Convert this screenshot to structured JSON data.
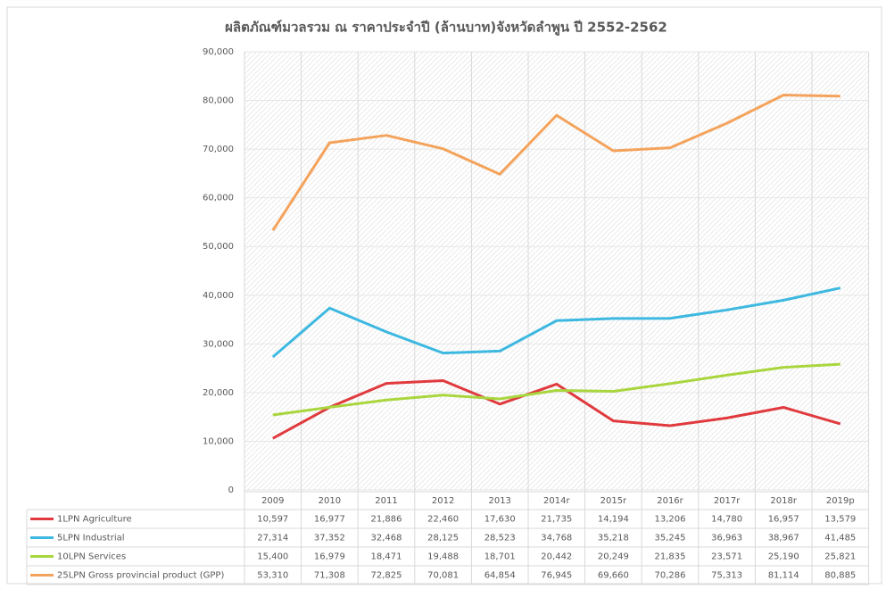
{
  "chart_data": {
    "type": "line",
    "title": "ผลิตภัณฑ์มวลรวม ณ ราคาประจำปี (ล้านบาท)จังหวัดลำพูน ปี 2552-2562",
    "categories": [
      "2009",
      "2010",
      "2011",
      "2012",
      "2013",
      "2014r",
      "2015r",
      "2016r",
      "2017r",
      "2018r",
      "2019p"
    ],
    "series": [
      {
        "name": "1LPN Agriculture",
        "color": "#e03a3e",
        "values": [
          10597,
          16977,
          21886,
          22460,
          17630,
          21735,
          14194,
          13206,
          14780,
          16957,
          13579
        ],
        "value_labels": [
          "10,597",
          "16,977",
          "21,886",
          "22,460",
          "17,630",
          "21,735",
          "14,194",
          "13,206",
          "14,780",
          "16,957",
          "13,579"
        ]
      },
      {
        "name": "5LPN Industrial",
        "color": "#3db8e0",
        "values": [
          27314,
          37352,
          32468,
          28125,
          28523,
          34768,
          35218,
          35245,
          36963,
          38967,
          41485
        ],
        "value_labels": [
          "27,314",
          "37,352",
          "32,468",
          "28,125",
          "28,523",
          "34,768",
          "35,218",
          "35,245",
          "36,963",
          "38,967",
          "41,485"
        ]
      },
      {
        "name": "10LPN Services",
        "color": "#a9d63f",
        "values": [
          15400,
          16979,
          18471,
          19488,
          18701,
          20442,
          20249,
          21835,
          23571,
          25190,
          25821
        ],
        "value_labels": [
          "15,400",
          "16,979",
          "18,471",
          "19,488",
          "18,701",
          "20,442",
          "20,249",
          "21,835",
          "23,571",
          "25,190",
          "25,821"
        ]
      },
      {
        "name": "25LPN Gross provincial product (GPP)",
        "color": "#f4a35c",
        "values": [
          53310,
          71308,
          72825,
          70081,
          64854,
          76945,
          69660,
          70286,
          75313,
          81114,
          80885
        ],
        "value_labels": [
          "53,310",
          "71,308",
          "72,825",
          "70,081",
          "64,854",
          "76,945",
          "69,660",
          "70,286",
          "75,313",
          "81,114",
          "80,885"
        ]
      }
    ],
    "ylim": [
      0,
      90000
    ],
    "yticks": [
      0,
      {
        "value": 10000,
        "label": "10,000"
      },
      {
        "value": 20000,
        "label": "20,000"
      },
      {
        "value": 30000,
        "label": "30,000"
      },
      {
        "value": 40000,
        "label": "40,000"
      },
      {
        "value": 50000,
        "label": "50,000"
      },
      {
        "value": 60000,
        "label": "60,000"
      },
      {
        "value": 70000,
        "label": "70,000"
      },
      {
        "value": 80000,
        "label": "80,000"
      },
      {
        "value": 90000,
        "label": "90,000"
      }
    ],
    "grid": true
  }
}
